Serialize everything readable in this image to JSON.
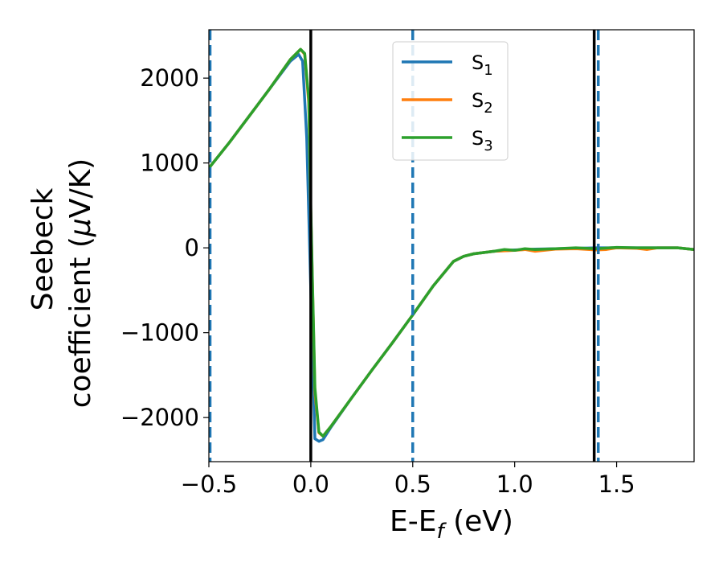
{
  "chart_data": {
    "type": "line",
    "xlabel_main": "E-E",
    "xlabel_sub": "f",
    "xlabel_unit": " (eV)",
    "ylabel_line1": "Seebeck",
    "ylabel_line2_prefix": "coefficient  (",
    "ylabel_line2_mu": "μ",
    "ylabel_line2_suffix": "V/K)",
    "xlim": [
      -0.5,
      1.88
    ],
    "ylim": [
      -2520,
      2570
    ],
    "xticks": [
      -0.5,
      0.0,
      0.5,
      1.0,
      1.5
    ],
    "xtick_labels": [
      "−0.5",
      "0.0",
      "0.5",
      "1.0",
      "1.5"
    ],
    "yticks": [
      -2000,
      -1000,
      0,
      1000,
      2000
    ],
    "ytick_labels": [
      "−2000",
      "−1000",
      "0",
      "1000",
      "2000"
    ],
    "grid": false,
    "legend_position": "top-center",
    "vlines_solid": [
      0.0,
      1.39
    ],
    "vlines_dashed": [
      -0.5,
      0.5,
      1.41
    ],
    "vline_solid_color": "#000000",
    "vline_dashed_color": "#1f77b4",
    "series": [
      {
        "name_main": "S",
        "name_sub": "1",
        "color": "#1f77b4",
        "x": [
          -0.5,
          -0.4,
          -0.3,
          -0.2,
          -0.1,
          -0.06,
          -0.04,
          -0.02,
          0.0,
          0.02,
          0.04,
          0.06,
          0.1,
          0.2,
          0.3,
          0.4,
          0.5,
          0.6,
          0.7,
          0.75,
          0.8,
          0.9,
          1.0,
          1.1,
          1.2,
          1.3,
          1.4,
          1.5,
          1.6,
          1.7,
          1.8,
          1.88
        ],
        "y": [
          940,
          1240,
          1560,
          1880,
          2200,
          2280,
          2200,
          1300,
          -500,
          -2250,
          -2280,
          -2260,
          -2110,
          -1770,
          -1440,
          -1120,
          -790,
          -450,
          -160,
          -100,
          -70,
          -40,
          -25,
          -15,
          -10,
          -5,
          0,
          0,
          0,
          0,
          0,
          -20
        ]
      },
      {
        "name_main": "S",
        "name_sub": "2",
        "color": "#ff7f0e",
        "x": [
          -0.5,
          -0.4,
          -0.3,
          -0.2,
          -0.1,
          -0.05,
          -0.03,
          -0.01,
          0.0,
          0.02,
          0.04,
          0.06,
          0.1,
          0.2,
          0.3,
          0.4,
          0.5,
          0.6,
          0.7,
          0.75,
          0.8,
          0.9,
          1.0,
          1.05,
          1.1,
          1.2,
          1.3,
          1.4,
          1.45,
          1.5,
          1.6,
          1.65,
          1.7,
          1.8,
          1.88
        ],
        "y": [
          940,
          1240,
          1560,
          1880,
          2220,
          2340,
          2280,
          1700,
          400,
          -1700,
          -2180,
          -2220,
          -2100,
          -1770,
          -1440,
          -1120,
          -790,
          -450,
          -160,
          -100,
          -70,
          -40,
          -30,
          -20,
          -40,
          -15,
          -10,
          -25,
          -20,
          0,
          -5,
          -20,
          0,
          0,
          -20
        ]
      },
      {
        "name_main": "S",
        "name_sub": "3",
        "color": "#2ca02c",
        "x": [
          -0.5,
          -0.4,
          -0.3,
          -0.2,
          -0.1,
          -0.05,
          -0.03,
          -0.01,
          0.0,
          0.02,
          0.04,
          0.06,
          0.1,
          0.2,
          0.3,
          0.4,
          0.5,
          0.6,
          0.7,
          0.75,
          0.8,
          0.9,
          0.95,
          1.0,
          1.05,
          1.1,
          1.2,
          1.3,
          1.4,
          1.5,
          1.6,
          1.7,
          1.8,
          1.88
        ],
        "y": [
          940,
          1240,
          1560,
          1880,
          2220,
          2340,
          2290,
          1750,
          450,
          -1650,
          -2170,
          -2220,
          -2100,
          -1770,
          -1440,
          -1120,
          -790,
          -450,
          -160,
          -100,
          -70,
          -40,
          -20,
          -30,
          -10,
          -20,
          -10,
          0,
          -10,
          5,
          0,
          0,
          0,
          -20
        ]
      }
    ]
  }
}
